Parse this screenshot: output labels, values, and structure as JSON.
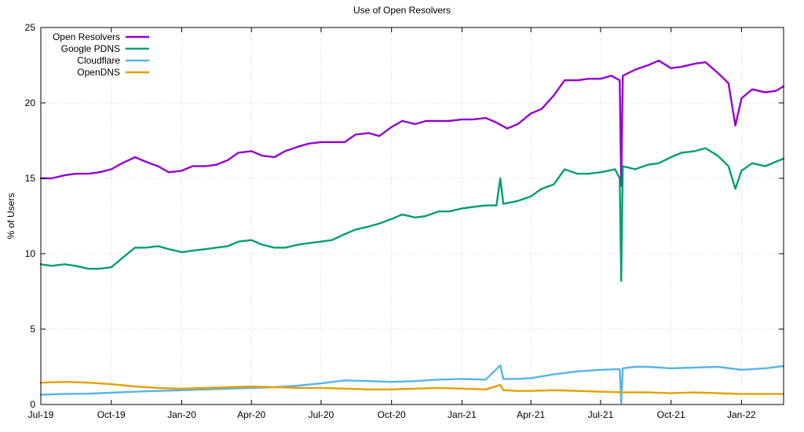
{
  "chart_data": {
    "type": "line",
    "title": "Use of Open Resolvers",
    "xlabel": "",
    "ylabel": "% of Users",
    "xlim": [
      "2019-07-01",
      "2022-02-25"
    ],
    "ylim": [
      0,
      25
    ],
    "y_ticks": [
      0,
      5,
      10,
      15,
      20,
      25
    ],
    "x_ticks": [
      {
        "date": "2019-07-01",
        "label": "Jul-19"
      },
      {
        "date": "2019-10-01",
        "label": "Oct-19"
      },
      {
        "date": "2020-01-01",
        "label": "Jan-20"
      },
      {
        "date": "2020-04-01",
        "label": "Apr-20"
      },
      {
        "date": "2020-07-01",
        "label": "Jul-20"
      },
      {
        "date": "2020-10-01",
        "label": "Oct-20"
      },
      {
        "date": "2021-01-01",
        "label": "Jan-21"
      },
      {
        "date": "2021-04-01",
        "label": "Apr-21"
      },
      {
        "date": "2021-07-01",
        "label": "Jul-21"
      },
      {
        "date": "2021-10-01",
        "label": "Oct-21"
      },
      {
        "date": "2022-01-01",
        "label": "Jan-22"
      }
    ],
    "grid": true,
    "legend_position": "top-left",
    "series": [
      {
        "name": "Open Resolvers",
        "color": "#9400d3",
        "points": [
          [
            "2019-07-01",
            15.0
          ],
          [
            "2019-07-15",
            15.0
          ],
          [
            "2019-08-01",
            15.2
          ],
          [
            "2019-08-15",
            15.3
          ],
          [
            "2019-09-01",
            15.3
          ],
          [
            "2019-09-15",
            15.4
          ],
          [
            "2019-10-01",
            15.6
          ],
          [
            "2019-10-15",
            16.0
          ],
          [
            "2019-11-01",
            16.4
          ],
          [
            "2019-11-15",
            16.1
          ],
          [
            "2019-12-01",
            15.8
          ],
          [
            "2019-12-15",
            15.4
          ],
          [
            "2020-01-01",
            15.5
          ],
          [
            "2020-01-15",
            15.8
          ],
          [
            "2020-02-01",
            15.8
          ],
          [
            "2020-02-15",
            15.9
          ],
          [
            "2020-03-01",
            16.2
          ],
          [
            "2020-03-15",
            16.7
          ],
          [
            "2020-04-01",
            16.8
          ],
          [
            "2020-04-15",
            16.5
          ],
          [
            "2020-05-01",
            16.4
          ],
          [
            "2020-05-15",
            16.8
          ],
          [
            "2020-06-01",
            17.1
          ],
          [
            "2020-06-15",
            17.3
          ],
          [
            "2020-07-01",
            17.4
          ],
          [
            "2020-07-15",
            17.4
          ],
          [
            "2020-08-01",
            17.4
          ],
          [
            "2020-08-15",
            17.9
          ],
          [
            "2020-09-01",
            18.0
          ],
          [
            "2020-09-15",
            17.8
          ],
          [
            "2020-10-01",
            18.4
          ],
          [
            "2020-10-15",
            18.8
          ],
          [
            "2020-11-01",
            18.6
          ],
          [
            "2020-11-15",
            18.8
          ],
          [
            "2020-12-01",
            18.8
          ],
          [
            "2020-12-15",
            18.8
          ],
          [
            "2021-01-01",
            18.9
          ],
          [
            "2021-01-15",
            18.9
          ],
          [
            "2021-02-01",
            19.0
          ],
          [
            "2021-02-15",
            18.7
          ],
          [
            "2021-03-01",
            18.3
          ],
          [
            "2021-03-15",
            18.6
          ],
          [
            "2021-04-01",
            19.3
          ],
          [
            "2021-04-15",
            19.6
          ],
          [
            "2021-05-01",
            20.5
          ],
          [
            "2021-05-15",
            21.5
          ],
          [
            "2021-06-01",
            21.5
          ],
          [
            "2021-06-15",
            21.6
          ],
          [
            "2021-07-01",
            21.6
          ],
          [
            "2021-07-15",
            21.8
          ],
          [
            "2021-07-26",
            21.5
          ],
          [
            "2021-07-28",
            14.5
          ],
          [
            "2021-07-30",
            21.8
          ],
          [
            "2021-08-15",
            22.2
          ],
          [
            "2021-09-01",
            22.5
          ],
          [
            "2021-09-15",
            22.8
          ],
          [
            "2021-10-01",
            22.3
          ],
          [
            "2021-10-15",
            22.4
          ],
          [
            "2021-11-01",
            22.6
          ],
          [
            "2021-11-15",
            22.7
          ],
          [
            "2021-12-01",
            22.0
          ],
          [
            "2021-12-15",
            21.3
          ],
          [
            "2021-12-24",
            18.5
          ],
          [
            "2022-01-01",
            20.3
          ],
          [
            "2022-01-15",
            20.9
          ],
          [
            "2022-02-01",
            20.7
          ],
          [
            "2022-02-15",
            20.8
          ],
          [
            "2022-02-25",
            21.1
          ]
        ]
      },
      {
        "name": "Google PDNS",
        "color": "#009e73",
        "points": [
          [
            "2019-07-01",
            9.3
          ],
          [
            "2019-07-15",
            9.2
          ],
          [
            "2019-08-01",
            9.3
          ],
          [
            "2019-08-15",
            9.2
          ],
          [
            "2019-09-01",
            9.0
          ],
          [
            "2019-09-15",
            9.0
          ],
          [
            "2019-10-01",
            9.1
          ],
          [
            "2019-10-15",
            9.7
          ],
          [
            "2019-11-01",
            10.4
          ],
          [
            "2019-11-15",
            10.4
          ],
          [
            "2019-12-01",
            10.5
          ],
          [
            "2019-12-15",
            10.3
          ],
          [
            "2020-01-01",
            10.1
          ],
          [
            "2020-01-15",
            10.2
          ],
          [
            "2020-02-01",
            10.3
          ],
          [
            "2020-02-15",
            10.4
          ],
          [
            "2020-03-01",
            10.5
          ],
          [
            "2020-03-15",
            10.8
          ],
          [
            "2020-04-01",
            10.9
          ],
          [
            "2020-04-15",
            10.6
          ],
          [
            "2020-05-01",
            10.4
          ],
          [
            "2020-05-15",
            10.4
          ],
          [
            "2020-06-01",
            10.6
          ],
          [
            "2020-06-15",
            10.7
          ],
          [
            "2020-07-01",
            10.8
          ],
          [
            "2020-07-15",
            10.9
          ],
          [
            "2020-08-01",
            11.3
          ],
          [
            "2020-08-15",
            11.6
          ],
          [
            "2020-09-01",
            11.8
          ],
          [
            "2020-09-15",
            12.0
          ],
          [
            "2020-10-01",
            12.3
          ],
          [
            "2020-10-15",
            12.6
          ],
          [
            "2020-11-01",
            12.4
          ],
          [
            "2020-11-15",
            12.5
          ],
          [
            "2020-12-01",
            12.8
          ],
          [
            "2020-12-15",
            12.8
          ],
          [
            "2021-01-01",
            13.0
          ],
          [
            "2021-01-15",
            13.1
          ],
          [
            "2021-02-01",
            13.2
          ],
          [
            "2021-02-15",
            13.2
          ],
          [
            "2021-02-20",
            15.0
          ],
          [
            "2021-02-24",
            13.3
          ],
          [
            "2021-03-15",
            13.5
          ],
          [
            "2021-04-01",
            13.8
          ],
          [
            "2021-04-15",
            14.3
          ],
          [
            "2021-05-01",
            14.6
          ],
          [
            "2021-05-15",
            15.6
          ],
          [
            "2021-06-01",
            15.3
          ],
          [
            "2021-06-15",
            15.3
          ],
          [
            "2021-07-01",
            15.4
          ],
          [
            "2021-07-20",
            15.6
          ],
          [
            "2021-07-26",
            15.0
          ],
          [
            "2021-07-28",
            8.2
          ],
          [
            "2021-07-30",
            15.8
          ],
          [
            "2021-08-15",
            15.6
          ],
          [
            "2021-09-01",
            15.9
          ],
          [
            "2021-09-15",
            16.0
          ],
          [
            "2021-10-01",
            16.4
          ],
          [
            "2021-10-15",
            16.7
          ],
          [
            "2021-11-01",
            16.8
          ],
          [
            "2021-11-15",
            17.0
          ],
          [
            "2021-12-01",
            16.5
          ],
          [
            "2021-12-15",
            15.8
          ],
          [
            "2021-12-24",
            14.3
          ],
          [
            "2022-01-01",
            15.5
          ],
          [
            "2022-01-15",
            16.0
          ],
          [
            "2022-02-01",
            15.8
          ],
          [
            "2022-02-15",
            16.1
          ],
          [
            "2022-02-25",
            16.3
          ]
        ]
      },
      {
        "name": "Cloudflare",
        "color": "#56b4e9",
        "points": [
          [
            "2019-07-01",
            0.65
          ],
          [
            "2019-08-01",
            0.7
          ],
          [
            "2019-09-01",
            0.72
          ],
          [
            "2019-10-01",
            0.78
          ],
          [
            "2019-11-01",
            0.85
          ],
          [
            "2019-12-01",
            0.9
          ],
          [
            "2020-01-01",
            0.95
          ],
          [
            "2020-02-01",
            1.0
          ],
          [
            "2020-03-01",
            1.05
          ],
          [
            "2020-04-01",
            1.1
          ],
          [
            "2020-05-01",
            1.15
          ],
          [
            "2020-06-01",
            1.25
          ],
          [
            "2020-07-01",
            1.4
          ],
          [
            "2020-08-01",
            1.6
          ],
          [
            "2020-09-01",
            1.55
          ],
          [
            "2020-10-01",
            1.5
          ],
          [
            "2020-11-01",
            1.55
          ],
          [
            "2020-12-01",
            1.65
          ],
          [
            "2021-01-01",
            1.7
          ],
          [
            "2021-02-01",
            1.65
          ],
          [
            "2021-02-20",
            2.6
          ],
          [
            "2021-02-24",
            1.7
          ],
          [
            "2021-03-15",
            1.7
          ],
          [
            "2021-04-01",
            1.75
          ],
          [
            "2021-05-01",
            2.0
          ],
          [
            "2021-06-01",
            2.2
          ],
          [
            "2021-07-01",
            2.3
          ],
          [
            "2021-07-26",
            2.35
          ],
          [
            "2021-07-28",
            0.1
          ],
          [
            "2021-07-30",
            2.4
          ],
          [
            "2021-08-15",
            2.5
          ],
          [
            "2021-09-01",
            2.5
          ],
          [
            "2021-10-01",
            2.4
          ],
          [
            "2021-11-01",
            2.45
          ],
          [
            "2021-12-01",
            2.5
          ],
          [
            "2022-01-01",
            2.3
          ],
          [
            "2022-02-01",
            2.4
          ],
          [
            "2022-02-25",
            2.55
          ]
        ]
      },
      {
        "name": "OpenDNS",
        "color": "#e69f00",
        "points": [
          [
            "2019-07-01",
            1.45
          ],
          [
            "2019-08-01",
            1.5
          ],
          [
            "2019-09-01",
            1.45
          ],
          [
            "2019-10-01",
            1.35
          ],
          [
            "2019-11-01",
            1.2
          ],
          [
            "2019-12-01",
            1.1
          ],
          [
            "2020-01-01",
            1.05
          ],
          [
            "2020-02-01",
            1.1
          ],
          [
            "2020-03-01",
            1.15
          ],
          [
            "2020-04-01",
            1.2
          ],
          [
            "2020-05-01",
            1.15
          ],
          [
            "2020-06-01",
            1.1
          ],
          [
            "2020-07-01",
            1.1
          ],
          [
            "2020-08-01",
            1.05
          ],
          [
            "2020-09-01",
            1.0
          ],
          [
            "2020-10-01",
            1.0
          ],
          [
            "2020-11-01",
            1.05
          ],
          [
            "2020-12-01",
            1.1
          ],
          [
            "2021-01-01",
            1.05
          ],
          [
            "2021-02-01",
            1.0
          ],
          [
            "2021-02-20",
            1.3
          ],
          [
            "2021-02-24",
            0.95
          ],
          [
            "2021-03-15",
            0.9
          ],
          [
            "2021-04-01",
            0.9
          ],
          [
            "2021-05-01",
            0.95
          ],
          [
            "2021-06-01",
            0.9
          ],
          [
            "2021-07-01",
            0.85
          ],
          [
            "2021-08-01",
            0.8
          ],
          [
            "2021-09-01",
            0.8
          ],
          [
            "2021-10-01",
            0.75
          ],
          [
            "2021-11-01",
            0.8
          ],
          [
            "2021-12-01",
            0.75
          ],
          [
            "2022-01-01",
            0.7
          ],
          [
            "2022-02-01",
            0.7
          ],
          [
            "2022-02-25",
            0.7
          ]
        ]
      }
    ]
  }
}
